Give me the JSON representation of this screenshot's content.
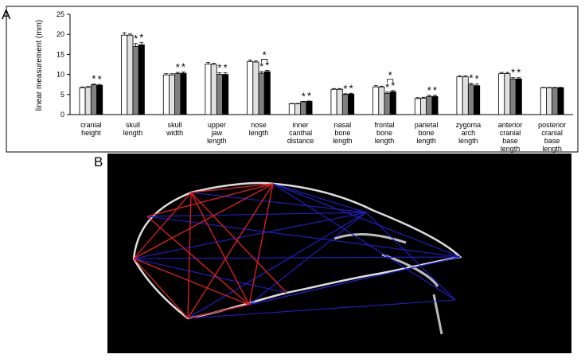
{
  "panels": [
    "A",
    "B"
  ],
  "chart_data": {
    "type": "bar",
    "y_label": "linear measurement (mm)",
    "categories": [
      "cranial\nheight",
      "skull\nlength",
      "skull\nwidth",
      "upper\njaw\nlength",
      "nose\nlength",
      "inner\ncanthal\ndistance",
      "nasal\nbone\nlength",
      "frontal\nbone\nlength",
      "parietal\nbone\nlength",
      "zygoma\narch\nlength",
      "anterior\ncranial\nbase\nlength",
      "posterior\ncranial\nbase\nlength"
    ],
    "series": [
      {
        "color": "#ffffff",
        "values": [
          6.7,
          19.8,
          9.9,
          12.6,
          13.2,
          2.7,
          6.3,
          6.9,
          4.0,
          9.4,
          10.2,
          6.7
        ],
        "errors": [
          0.2,
          0.6,
          0.3,
          0.4,
          0.4,
          0.1,
          0.2,
          0.3,
          0.2,
          0.3,
          0.3,
          0.1
        ],
        "markers": [
          null,
          null,
          null,
          null,
          null,
          null,
          null,
          null,
          null,
          null,
          null,
          null
        ]
      },
      {
        "color": "#e0e0e0",
        "values": [
          6.8,
          19.8,
          9.9,
          12.5,
          13.1,
          2.7,
          6.3,
          6.9,
          4.1,
          9.4,
          10.2,
          6.7
        ],
        "errors": [
          0.2,
          0.3,
          0.3,
          0.3,
          0.3,
          0.1,
          0.2,
          0.2,
          0.2,
          0.3,
          0.3,
          0.1
        ],
        "markers": [
          null,
          null,
          null,
          null,
          null,
          null,
          null,
          null,
          null,
          null,
          null,
          null
        ]
      },
      {
        "color": "#808080",
        "values": [
          7.4,
          17.0,
          10.2,
          10.0,
          10.3,
          3.2,
          5.0,
          5.3,
          4.5,
          7.4,
          8.9,
          6.7
        ],
        "errors": [
          0.2,
          0.7,
          0.3,
          0.4,
          0.4,
          0.1,
          0.2,
          0.3,
          0.3,
          0.4,
          0.3,
          0.1
        ],
        "markers": [
          "*",
          "*",
          "*",
          "*",
          "*",
          "*",
          "*",
          "*",
          "*",
          "*",
          "*",
          null
        ]
      },
      {
        "color": "#000000",
        "values": [
          7.3,
          17.4,
          10.3,
          10.0,
          10.7,
          3.3,
          5.1,
          5.7,
          4.5,
          7.2,
          8.9,
          6.7
        ],
        "errors": [
          0.2,
          0.6,
          0.3,
          0.4,
          0.3,
          0.1,
          0.2,
          0.3,
          0.3,
          0.4,
          0.3,
          0.1
        ],
        "markers": [
          "*",
          "*",
          "*",
          "*",
          "*",
          "*",
          "*",
          "*",
          "*",
          "*",
          "*",
          null
        ]
      }
    ],
    "brackets": [
      null,
      null,
      null,
      null,
      "*",
      null,
      null,
      "*",
      null,
      null,
      null,
      null
    ],
    "ylim": [
      0,
      25
    ],
    "yticks": [
      0,
      5,
      10,
      15,
      20,
      25
    ]
  }
}
